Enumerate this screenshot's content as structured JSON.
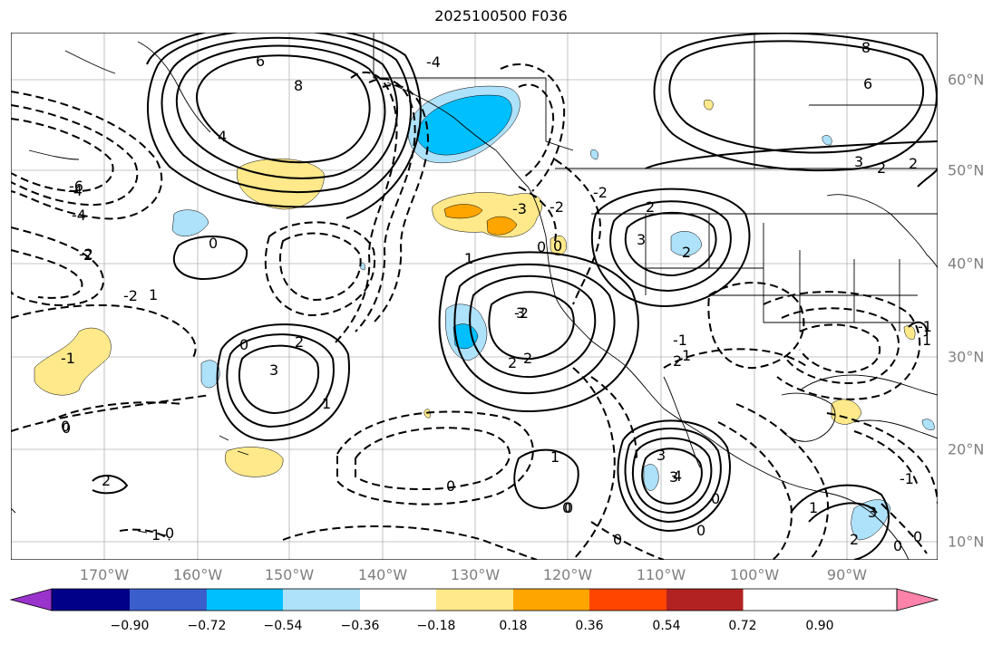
{
  "title": "2025100500 F036",
  "colors": {
    "graticule": "#b0b0b0",
    "contour": "#000000",
    "land": "#000000",
    "tick_label": "#7f7f7f"
  },
  "map": {
    "lon_labels": [
      "170°W",
      "160°W",
      "150°W",
      "140°W",
      "130°W",
      "120°W",
      "110°W",
      "100°W",
      "90°W"
    ],
    "lat_labels": [
      "60°N",
      "50°N",
      "40°N",
      "30°N",
      "20°N",
      "10°N"
    ],
    "contour_labels": [
      "6",
      "8",
      "4",
      "-4",
      "6",
      "8",
      "2",
      "-2",
      "0",
      "2",
      "-6",
      "-4",
      "2",
      "1",
      "0",
      "-2",
      "0",
      "-1",
      "2",
      "0",
      "1",
      "2",
      "3",
      "1",
      "0",
      "-4",
      "-3",
      "-2",
      "3",
      "2",
      "1",
      "-1",
      "-2",
      "0",
      "-1",
      "1",
      "2",
      "3",
      "0",
      "3",
      "3",
      "2",
      "0",
      "3",
      "2",
      "0",
      "0",
      "2",
      "1",
      "2",
      "0",
      "-1",
      "-2",
      "1",
      "3",
      "4",
      "0",
      "0",
      "1",
      "0",
      "0",
      "1"
    ],
    "shading_legend": "contour shading"
  },
  "colorbar": {
    "bins": [
      {
        "color": "#9933cc"
      },
      {
        "color": "#000088"
      },
      {
        "color": "#3a5fcd"
      },
      {
        "color": "#00bfff"
      },
      {
        "color": "#aee1fa"
      },
      {
        "color": "#ffffff"
      },
      {
        "color": "#ffe98a"
      },
      {
        "color": "#ffa500"
      },
      {
        "color": "#ff4500"
      },
      {
        "color": "#b22222"
      },
      {
        "color": "#ff82ab"
      }
    ],
    "tick_labels": [
      "−0.90",
      "−0.72",
      "−0.54",
      "−0.36",
      "−0.18",
      "0.18",
      "0.36",
      "0.54",
      "0.72",
      "0.90"
    ]
  }
}
